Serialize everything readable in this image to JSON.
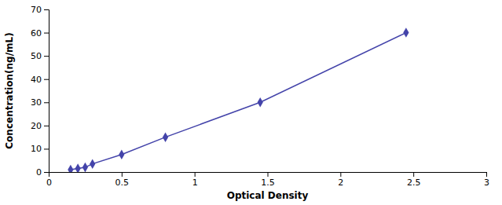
{
  "chart_data": {
    "type": "line",
    "xlabel": "Optical Density",
    "ylabel": "Concentration(ng/mL)",
    "x": [
      0.15,
      0.2,
      0.25,
      0.3,
      0.5,
      0.8,
      1.45,
      2.45
    ],
    "values": [
      1.0,
      1.5,
      2.0,
      3.5,
      7.5,
      15.0,
      30.0,
      60.0
    ],
    "color": "#4444aa",
    "marker": "diamond",
    "xlim": [
      0,
      3
    ],
    "ylim": [
      0,
      70
    ],
    "xticks": [
      0,
      0.5,
      1,
      1.5,
      2,
      2.5,
      3
    ],
    "yticks": [
      0,
      10,
      20,
      30,
      40,
      50,
      60,
      70
    ],
    "grid": false
  }
}
